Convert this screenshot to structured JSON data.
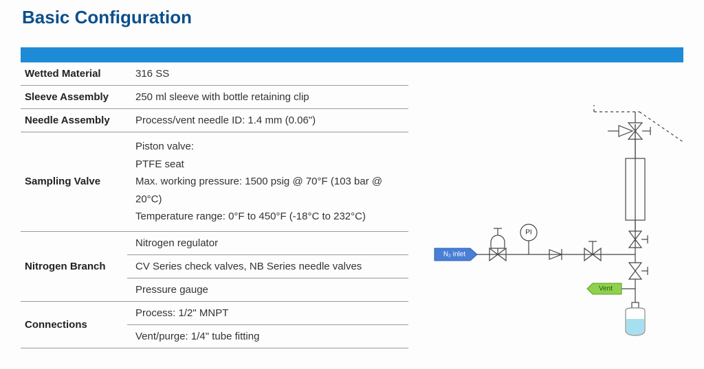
{
  "title": "Basic Configuration",
  "colors": {
    "title": "#0a4f8c",
    "bar": "#1e8bd6",
    "border": "#999999",
    "text": "#222222",
    "diagram_stroke": "#444444",
    "inlet_fill": "#4a7fd6",
    "inlet_stroke": "#2b5fb0",
    "vent_fill": "#8fd14f",
    "vent_stroke": "#5ba021",
    "bottle_fill": "#a6e0f0",
    "bottle_stroke": "#888888"
  },
  "table": {
    "rows": [
      {
        "label": "Wetted Material",
        "values": [
          "316 SS"
        ]
      },
      {
        "label": "Sleeve Assembly",
        "values": [
          "250 ml sleeve with bottle retaining clip"
        ]
      },
      {
        "label": "Needle Assembly",
        "values": [
          "Process/vent needle ID: 1.4 mm (0.06\")"
        ]
      },
      {
        "label": "Sampling Valve",
        "values": [
          "Piston valve:\nPTFE seat\nMax. working pressure: 1500 psig @ 70°F (103 bar @ 20°C)\nTemperature range: 0°F to 450°F (-18°C to 232°C)"
        ]
      },
      {
        "label": "Nitrogen Branch",
        "values": [
          "Nitrogen regulator",
          "CV Series check valves, NB Series needle valves",
          "Pressure gauge"
        ]
      },
      {
        "label": "Connections",
        "values": [
          "Process: 1/2\" MNPT",
          "Vent/purge: 1/4\" tube fitting"
        ]
      }
    ]
  },
  "diagram": {
    "type": "piping-schematic",
    "stroke_width": 1.2,
    "labels": {
      "inlet": "N₂ inlet",
      "vent": "Vent",
      "pi": "PI"
    },
    "font_size_labels": 11
  }
}
